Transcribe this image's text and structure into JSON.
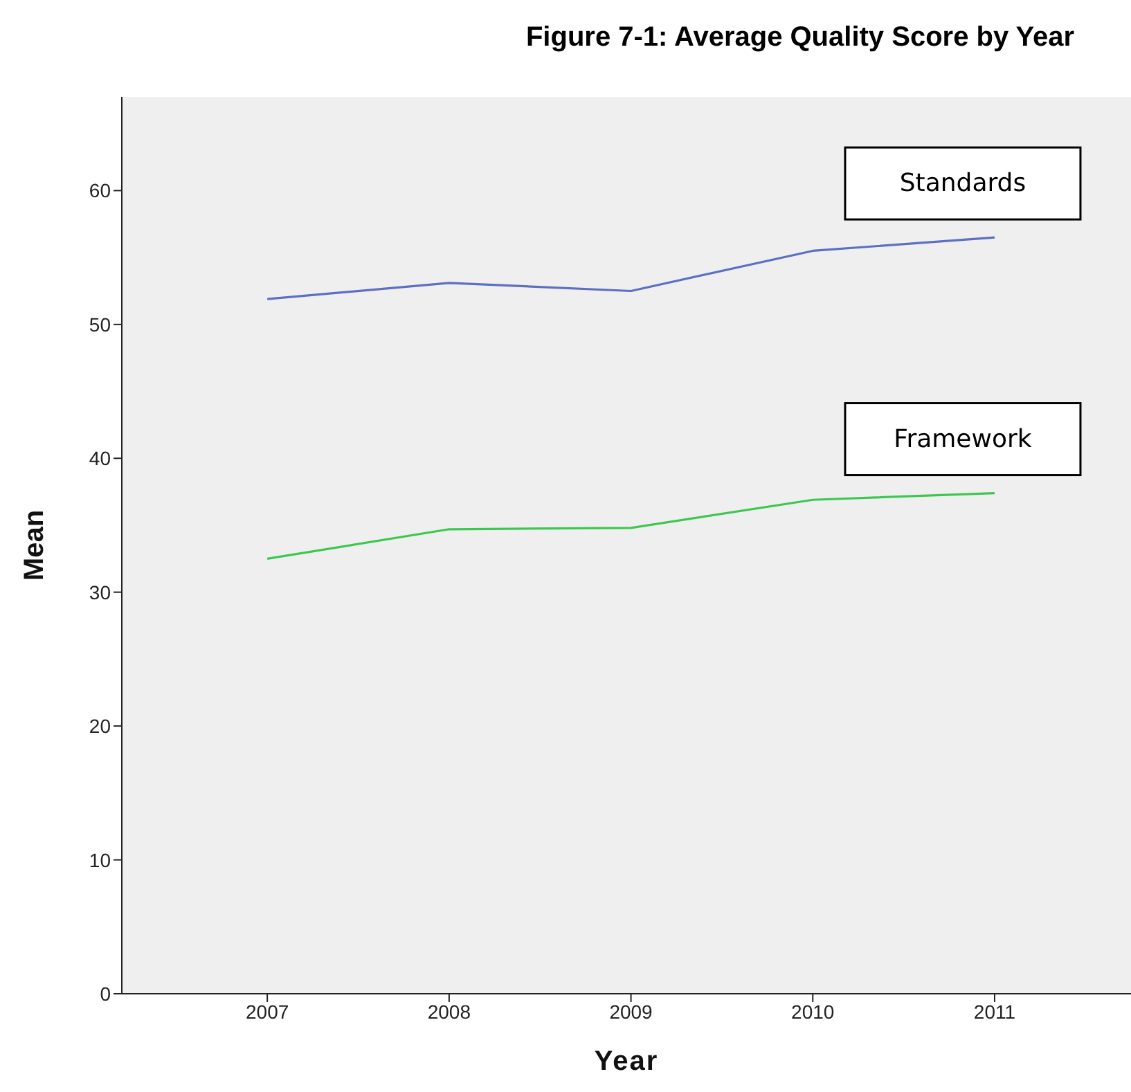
{
  "chart_data": {
    "type": "line",
    "title": "Figure 7-1: Average Quality Score by Year",
    "xlabel": "Year",
    "ylabel": "Mean",
    "x": [
      2007,
      2008,
      2009,
      2010,
      2011
    ],
    "xlim": [
      2006.2,
      2011.75
    ],
    "xticks": [
      2007,
      2008,
      2009,
      2010,
      2011
    ],
    "ylim": [
      0,
      67
    ],
    "yticks": [
      0,
      10,
      20,
      30,
      40,
      50,
      60
    ],
    "series": [
      {
        "name": "Standards",
        "color": "#5b6fc4",
        "values": [
          51.9,
          53.1,
          52.5,
          55.5,
          56.5
        ]
      },
      {
        "name": "Framework",
        "color": "#3cc850",
        "values": [
          32.5,
          34.7,
          34.8,
          36.9,
          37.4
        ]
      }
    ],
    "grid": false,
    "legend": false,
    "marker": "none",
    "line_style": "solid"
  }
}
